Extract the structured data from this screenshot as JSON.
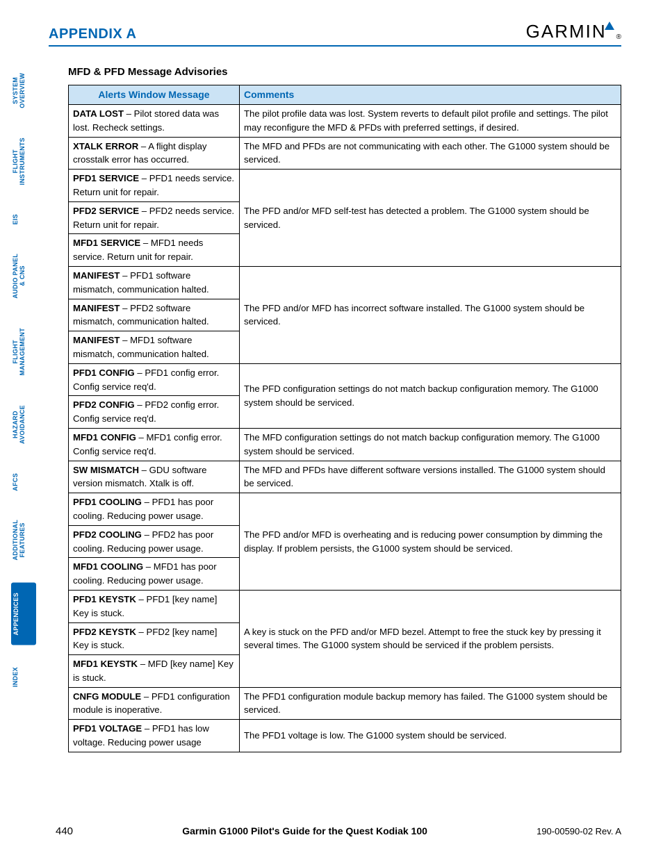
{
  "header": {
    "appendix": "APPENDIX A",
    "logo_text": "GARMIN"
  },
  "section_title": "MFD & PFD Message Advisories",
  "table": {
    "col1": "Alerts Window Message",
    "col2": "Comments",
    "groups": [
      {
        "messages": [
          {
            "bold": "DATA LOST",
            "rest": " – Pilot stored data was lost.  Recheck settings."
          }
        ],
        "comment": "The pilot profile data was lost.  System reverts to default pilot profile and settings.  The pilot may reconfigure the MFD & PFDs with preferred settings, if desired."
      },
      {
        "messages": [
          {
            "bold": "XTALK ERROR",
            "rest": " – A flight display crosstalk error has occurred."
          }
        ],
        "comment": "The MFD and PFDs are not communicating with each other.  The G1000 system should be serviced."
      },
      {
        "messages": [
          {
            "bold": "PFD1 SERVICE",
            "rest": " – PFD1 needs service.  Return unit for repair."
          },
          {
            "bold": "PFD2 SERVICE",
            "rest": " – PFD2 needs service.  Return unit for repair."
          },
          {
            "bold": "MFD1 SERVICE",
            "rest": " – MFD1 needs service.  Return unit for repair."
          }
        ],
        "comment": "The PFD and/or MFD self-test has detected a problem.  The G1000 system should be serviced."
      },
      {
        "messages": [
          {
            "bold": "MANIFEST",
            "rest": " – PFD1 software mismatch, communication halted."
          },
          {
            "bold": "MANIFEST",
            "rest": " – PFD2 software mismatch, communication halted."
          },
          {
            "bold": "MANIFEST",
            "rest": " – MFD1 software mismatch, communication halted."
          }
        ],
        "comment": "The PFD and/or MFD has incorrect software installed.  The G1000 system should be serviced."
      },
      {
        "messages": [
          {
            "bold": "PFD1 CONFIG",
            "rest": " – PFD1 config error.  Config service req'd."
          },
          {
            "bold": "PFD2 CONFIG",
            "rest": " – PFD2 config error.  Config service req'd."
          }
        ],
        "comment": "The PFD configuration settings do not match backup configuration memory.  The G1000 system should be serviced."
      },
      {
        "messages": [
          {
            "bold": "MFD1 CONFIG",
            "rest": " – MFD1 config error.  Config service req'd."
          }
        ],
        "comment": "The MFD configuration settings do not match backup configuration memory.  The G1000 system should be serviced."
      },
      {
        "messages": [
          {
            "bold": "SW MISMATCH",
            "rest": " – GDU software version mismatch.  Xtalk is off."
          }
        ],
        "comment": "The MFD and PFDs have different software versions installed.  The G1000 system should be serviced."
      },
      {
        "messages": [
          {
            "bold": "PFD1 COOLING",
            "rest": " – PFD1 has poor cooling.  Reducing power usage."
          },
          {
            "bold": "PFD2 COOLING",
            "rest": " – PFD2 has poor cooling.  Reducing power usage."
          },
          {
            "bold": "MFD1 COOLING",
            "rest": " – MFD1 has poor cooling.  Reducing power usage."
          }
        ],
        "comment": "The PFD and/or MFD is overheating and is reducing power consumption by dimming the display.   If problem persists, the G1000 system should be serviced."
      },
      {
        "messages": [
          {
            "bold": "PFD1 KEYSTK",
            "rest": " – PFD1 [key name] Key is stuck."
          },
          {
            "bold": "PFD2 KEYSTK",
            "rest": " – PFD2 [key name] Key is stuck."
          },
          {
            "bold": "MFD1 KEYSTK",
            "rest": " – MFD [key name] Key is stuck."
          }
        ],
        "comment": "A key is stuck on the PFD and/or MFD bezel.  Attempt to free the stuck key by pressing it several times.  The G1000 system should be serviced if the problem persists."
      },
      {
        "messages": [
          {
            "bold": "CNFG MODULE",
            "rest": " – PFD1 configuration module is inoperative."
          }
        ],
        "comment": "The PFD1 configuration module backup memory has failed.  The G1000 system should be serviced."
      },
      {
        "messages": [
          {
            "bold": "PFD1 VOLTAGE",
            "rest": " – PFD1 has low voltage.  Reducing power usage"
          }
        ],
        "comment": "The PFD1 voltage is low.  The G1000 system should be serviced."
      }
    ]
  },
  "tabs": [
    {
      "label": "SYSTEM\nOVERVIEW",
      "active": false
    },
    {
      "label": "FLIGHT\nINSTRUMENTS",
      "active": false
    },
    {
      "label": "EIS",
      "active": false
    },
    {
      "label": "AUDIO PANEL\n& CNS",
      "active": false
    },
    {
      "label": "FLIGHT\nMANAGEMENT",
      "active": false
    },
    {
      "label": "HAZARD\nAVOIDANCE",
      "active": false
    },
    {
      "label": "AFCS",
      "active": false
    },
    {
      "label": "ADDITIONAL\nFEATURES",
      "active": false
    },
    {
      "label": "APPENDICES",
      "active": true
    },
    {
      "label": "INDEX",
      "active": false
    }
  ],
  "footer": {
    "page": "440",
    "title": "Garmin G1000 Pilot's Guide for the Quest Kodiak 100",
    "rev": "190-00590-02   Rev. A"
  },
  "colors": {
    "blue": "#0066b3",
    "header_bg": "#cbe3f5"
  }
}
